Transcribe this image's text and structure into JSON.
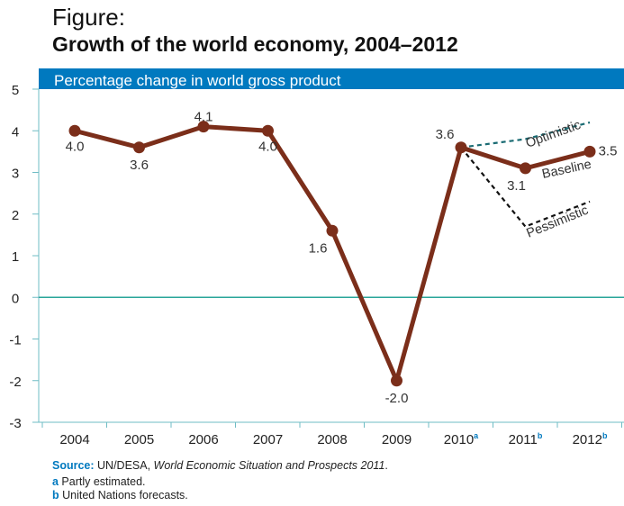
{
  "figure": {
    "label": "Figure:",
    "title": "Growth of the world economy, 2004–2012"
  },
  "chart_data": {
    "type": "line",
    "subtitle": "Percentage change in world gross product",
    "categories": [
      "2004",
      "2005",
      "2006",
      "2007",
      "2008",
      "2009",
      "2010",
      "2011",
      "2012"
    ],
    "category_superscripts": [
      "",
      "",
      "",
      "",
      "",
      "",
      "a",
      "b",
      "b"
    ],
    "ylim": [
      -3,
      5
    ],
    "yticks": [
      "-3",
      "-2",
      "-1",
      "0",
      "1",
      "2",
      "3",
      "4",
      "5"
    ],
    "series": [
      {
        "name": "Baseline",
        "values": [
          4.0,
          3.6,
          4.1,
          4.0,
          1.6,
          -2.0,
          3.6,
          3.1,
          3.5
        ],
        "labels": [
          "4.0",
          "3.6",
          "4.1",
          "4.0",
          "1.6",
          "-2.0",
          "3.6",
          "3.1",
          "3.5"
        ],
        "color": "#7b2e1a",
        "style": "solid"
      },
      {
        "name": "Optimistic",
        "values": [
          null,
          null,
          null,
          null,
          null,
          null,
          3.6,
          3.8,
          4.2
        ],
        "color": "#1a6b73",
        "style": "dashed"
      },
      {
        "name": "Pessimistic",
        "values": [
          null,
          null,
          null,
          null,
          null,
          null,
          3.6,
          1.7,
          2.3
        ],
        "color": "#111111",
        "style": "dashed"
      }
    ],
    "colors": {
      "header_band": "#0079bf",
      "zero_line": "#2aa69a",
      "axis": "#6fbcc4"
    }
  },
  "notes": {
    "source_label": "Source:",
    "source_text": " UN/DESA, ",
    "source_italic": "World Economic Situation and Prospects 2011",
    "source_end": ".",
    "note_a_key": "a",
    "note_a_text": " Partly estimated.",
    "note_b_key": "b",
    "note_b_text": " United Nations forecasts."
  }
}
